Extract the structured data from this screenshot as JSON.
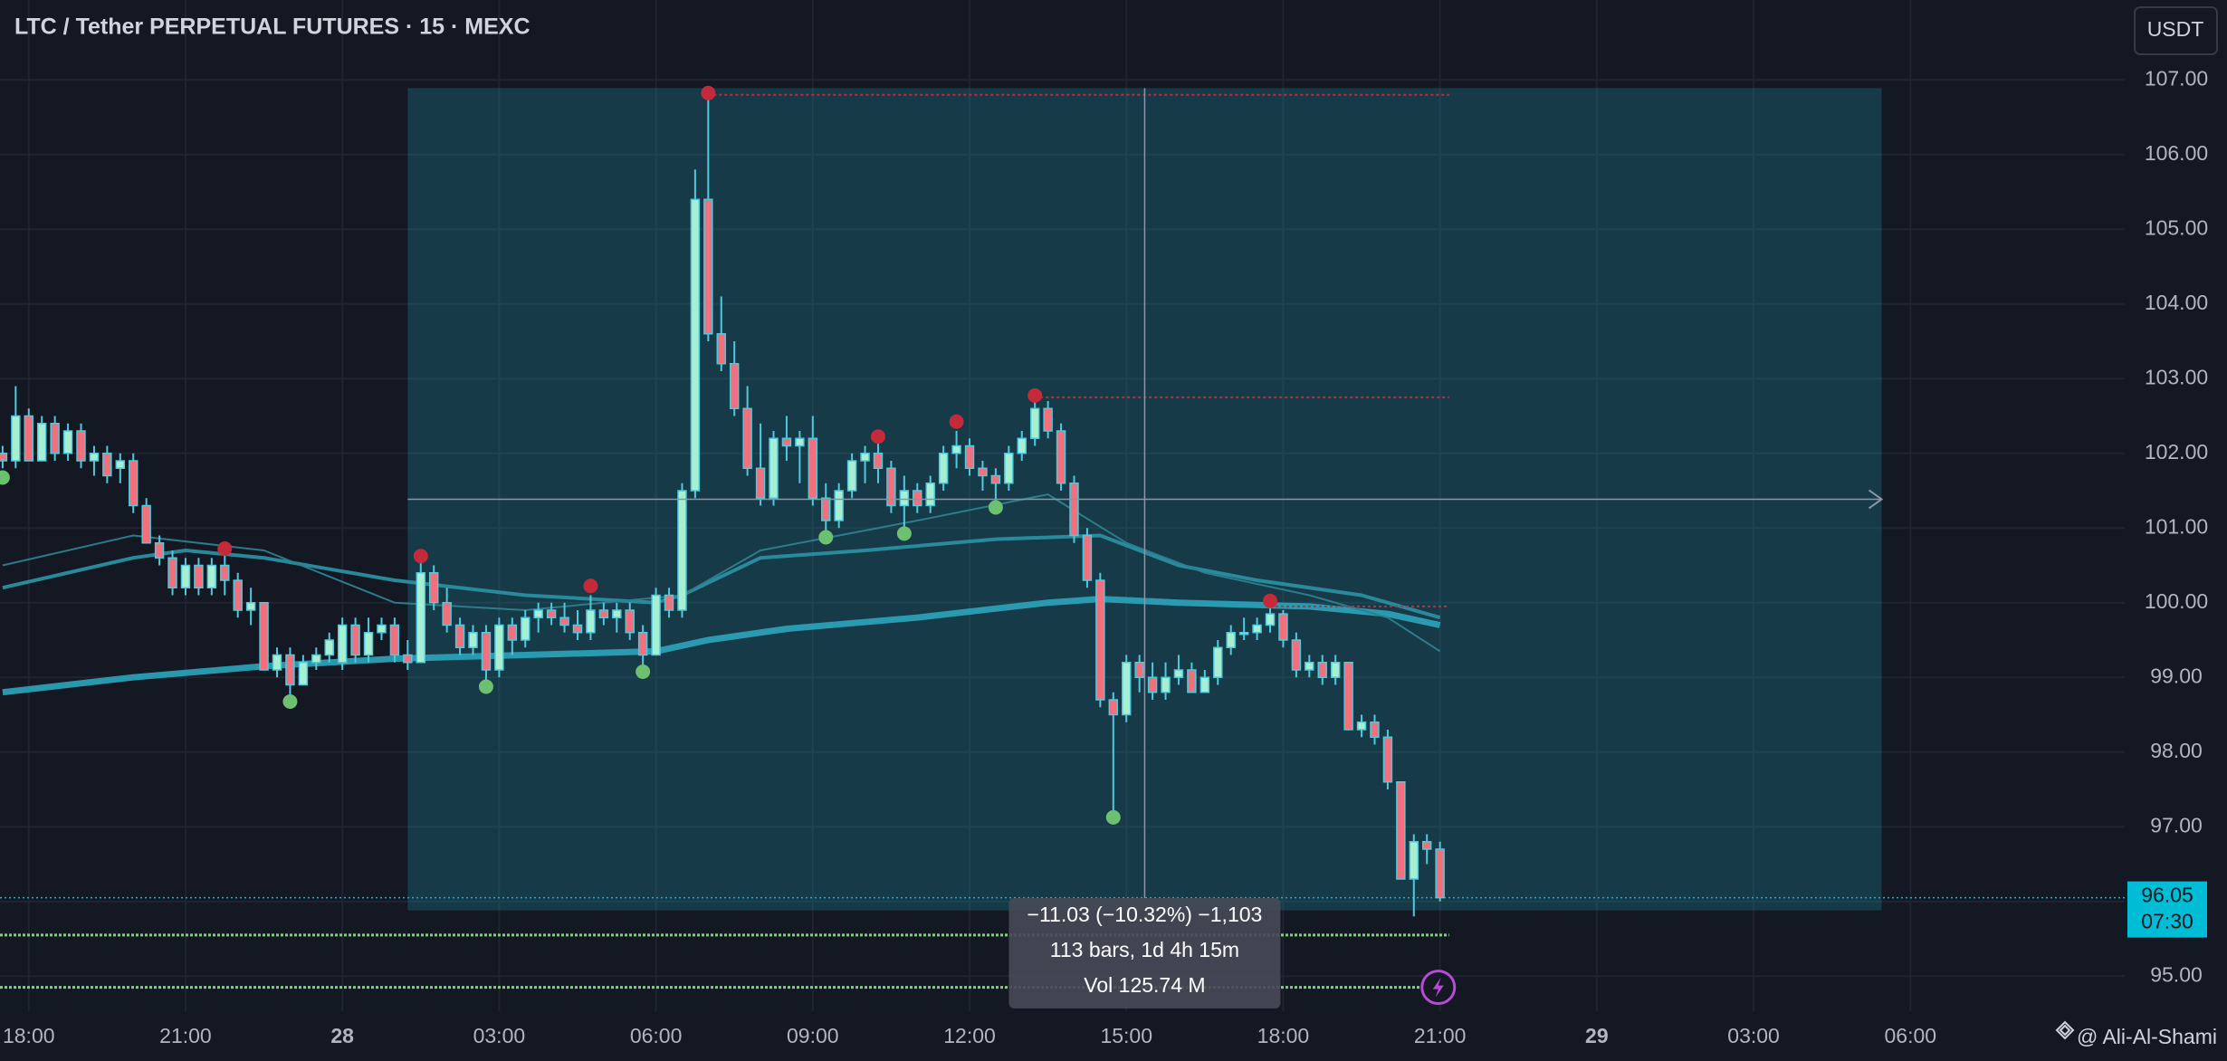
{
  "chart_data": {
    "type": "candlestick",
    "title": "LTC / Tether PERPETUAL FUTURES · 15 · MEXC",
    "currency_button": "USDT",
    "xlim": [
      -0.2,
      162.4
    ],
    "ylim": [
      94.53,
      108.07
    ],
    "xticks": [
      {
        "value": 2,
        "label": "18:00"
      },
      {
        "value": 14,
        "label": "21:00"
      },
      {
        "value": 26,
        "label": "28"
      },
      {
        "value": 38,
        "label": "03:00"
      },
      {
        "value": 50,
        "label": "06:00"
      },
      {
        "value": 62,
        "label": "09:00"
      },
      {
        "value": 74,
        "label": "12:00"
      },
      {
        "value": 86,
        "label": "15:00"
      },
      {
        "value": 98,
        "label": "18:00"
      },
      {
        "value": 110,
        "label": "21:00"
      },
      {
        "value": 122,
        "label": "29"
      },
      {
        "value": 134,
        "label": "03:00"
      },
      {
        "value": 146,
        "label": "06:00"
      }
    ],
    "yticks": [
      {
        "value": 95,
        "label": "95.00"
      },
      {
        "value": 96,
        "label": "96.00"
      },
      {
        "value": 97,
        "label": "97.00"
      },
      {
        "value": 98,
        "label": "98.00"
      },
      {
        "value": 99,
        "label": "99.00"
      },
      {
        "value": 100,
        "label": "100.00"
      },
      {
        "value": 101,
        "label": "101.00"
      },
      {
        "value": 102,
        "label": "102.00"
      },
      {
        "value": 103,
        "label": "103.00"
      },
      {
        "value": 104,
        "label": "104.00"
      },
      {
        "value": 105,
        "label": "105.00"
      },
      {
        "value": 106,
        "label": "106.00"
      },
      {
        "value": 107,
        "label": "107.00"
      }
    ],
    "grid": true,
    "up_color": "#a7efd3",
    "down_color": "#f0707e",
    "wick_color": "#4fc9dc",
    "open": [
      102.0,
      101.9,
      102.5,
      101.9,
      102.4,
      102.0,
      102.3,
      101.9,
      102.0,
      101.8,
      101.9,
      101.3,
      100.8,
      100.6,
      100.2,
      100.5,
      100.2,
      100.5,
      100.3,
      99.9,
      100.0,
      99.1,
      99.3,
      98.9,
      99.2,
      99.3,
      99.2,
      99.7,
      99.3,
      99.6,
      99.7,
      99.3,
      99.2,
      100.4,
      100.0,
      99.7,
      99.4,
      99.6,
      99.1,
      99.7,
      99.5,
      99.8,
      99.9,
      99.8,
      99.7,
      99.6,
      99.9,
      99.8,
      99.9,
      99.6,
      99.3,
      100.1,
      99.9,
      101.5,
      105.4,
      103.6,
      103.2,
      102.6,
      101.8,
      101.4,
      102.2,
      102.1,
      102.2,
      101.4,
      101.1,
      101.5,
      101.9,
      102.0,
      101.8,
      101.3,
      101.5,
      101.3,
      101.6,
      102.0,
      102.1,
      101.8,
      101.7,
      101.6,
      102.0,
      102.2,
      102.6,
      102.3,
      101.6,
      100.9,
      100.3,
      98.7,
      98.5,
      99.2,
      99.0,
      98.8,
      99.0,
      99.1,
      98.8,
      99.0,
      99.4,
      99.6,
      99.6,
      99.7,
      99.85,
      99.5,
      99.1,
      99.2,
      99.0,
      99.2,
      98.3,
      98.4,
      98.2,
      97.6,
      96.3,
      96.8,
      96.7
    ],
    "high": [
      102.1,
      102.9,
      102.6,
      102.5,
      102.5,
      102.4,
      102.4,
      102.1,
      102.1,
      102.0,
      102.0,
      101.4,
      100.9,
      100.7,
      100.6,
      100.6,
      100.6,
      100.7,
      100.4,
      100.2,
      100.0,
      99.4,
      99.4,
      99.3,
      99.4,
      99.6,
      99.8,
      99.8,
      99.8,
      99.8,
      99.8,
      99.5,
      100.6,
      100.5,
      100.2,
      99.8,
      99.7,
      99.7,
      99.8,
      99.8,
      99.9,
      100.0,
      100.0,
      100.0,
      99.9,
      100.1,
      100.0,
      100.0,
      100.0,
      99.7,
      100.2,
      100.2,
      101.6,
      105.8,
      106.8,
      104.1,
      103.5,
      102.9,
      102.4,
      102.3,
      102.5,
      102.3,
      102.5,
      101.6,
      101.6,
      102.0,
      102.1,
      102.2,
      101.9,
      101.7,
      101.6,
      101.7,
      102.1,
      102.3,
      102.2,
      101.9,
      101.8,
      102.1,
      102.3,
      102.7,
      102.7,
      102.4,
      101.7,
      101.0,
      100.4,
      98.8,
      99.3,
      99.3,
      99.2,
      99.2,
      99.3,
      99.2,
      99.1,
      99.5,
      99.7,
      99.8,
      99.8,
      100.0,
      99.9,
      99.6,
      99.3,
      99.3,
      99.3,
      99.2,
      98.5,
      98.5,
      98.3,
      97.6,
      96.9,
      96.9,
      96.8
    ],
    "low": [
      101.8,
      101.8,
      101.9,
      101.9,
      101.9,
      101.9,
      101.8,
      101.7,
      101.6,
      101.6,
      101.2,
      100.8,
      100.5,
      100.1,
      100.1,
      100.1,
      100.1,
      100.1,
      99.8,
      99.7,
      99.1,
      99.0,
      98.7,
      98.9,
      99.1,
      99.2,
      99.1,
      99.2,
      99.2,
      99.5,
      99.2,
      99.1,
      99.2,
      99.9,
      99.6,
      99.3,
      99.3,
      98.9,
      99.0,
      99.3,
      99.4,
      99.6,
      99.7,
      99.6,
      99.5,
      99.5,
      99.7,
      99.6,
      99.5,
      99.1,
      99.3,
      99.8,
      99.8,
      101.4,
      103.5,
      103.1,
      102.5,
      101.7,
      101.3,
      101.3,
      101.9,
      101.6,
      101.3,
      100.9,
      101.0,
      101.4,
      101.6,
      101.6,
      101.2,
      101.0,
      101.2,
      101.2,
      101.5,
      101.8,
      101.7,
      101.5,
      101.3,
      101.5,
      101.9,
      102.1,
      102.2,
      101.5,
      100.8,
      100.2,
      98.6,
      97.2,
      98.4,
      98.8,
      98.7,
      98.7,
      98.9,
      98.8,
      98.8,
      98.9,
      99.3,
      99.5,
      99.5,
      99.6,
      99.4,
      99.0,
      99.0,
      98.9,
      98.9,
      98.3,
      98.2,
      98.1,
      97.5,
      96.3,
      95.8,
      96.5,
      96.0
    ],
    "close": [
      101.9,
      102.5,
      101.9,
      102.4,
      102.0,
      102.3,
      101.9,
      102.0,
      101.7,
      101.9,
      101.3,
      100.8,
      100.6,
      100.2,
      100.5,
      100.2,
      100.5,
      100.3,
      99.9,
      100.0,
      99.1,
      99.3,
      98.9,
      99.2,
      99.3,
      99.5,
      99.7,
      99.3,
      99.6,
      99.7,
      99.3,
      99.2,
      100.4,
      100.0,
      99.7,
      99.4,
      99.6,
      99.1,
      99.7,
      99.5,
      99.8,
      99.9,
      99.8,
      99.7,
      99.6,
      99.9,
      99.8,
      99.9,
      99.6,
      99.3,
      100.1,
      99.9,
      101.5,
      105.4,
      103.6,
      103.2,
      102.6,
      101.8,
      101.4,
      102.2,
      102.1,
      102.2,
      101.4,
      101.1,
      101.5,
      101.9,
      102.0,
      101.8,
      101.3,
      101.5,
      101.3,
      101.6,
      102.0,
      102.1,
      101.8,
      101.7,
      101.6,
      102.0,
      102.2,
      102.6,
      102.3,
      101.6,
      100.9,
      100.3,
      98.7,
      98.5,
      99.2,
      99.0,
      98.8,
      99.0,
      99.1,
      98.8,
      99.0,
      99.4,
      99.6,
      99.6,
      99.7,
      99.85,
      99.5,
      99.1,
      99.2,
      99.0,
      99.2,
      98.3,
      98.4,
      98.2,
      97.6,
      96.3,
      96.8,
      96.7,
      96.05
    ],
    "ma": [
      {
        "color": "#2a9fb5",
        "width": 7,
        "x": [
          0,
          10,
          20,
          30,
          40,
          50,
          54,
          60,
          70,
          80,
          84,
          90,
          100,
          106,
          110
        ],
        "values": [
          98.8,
          99.0,
          99.15,
          99.25,
          99.3,
          99.35,
          99.5,
          99.65,
          99.8,
          100.0,
          100.05,
          100.0,
          99.95,
          99.85,
          99.7
        ]
      },
      {
        "color": "#2a8ea0",
        "width": 4,
        "x": [
          0,
          10,
          14,
          20,
          30,
          40,
          50,
          52,
          58,
          66,
          76,
          84,
          90,
          96,
          104,
          110
        ],
        "values": [
          100.2,
          100.6,
          100.7,
          100.6,
          100.3,
          100.1,
          100.0,
          100.1,
          100.6,
          100.7,
          100.85,
          100.9,
          100.5,
          100.3,
          100.1,
          99.8
        ]
      },
      {
        "color": "#2d7f8e",
        "width": 2,
        "x": [
          0,
          10,
          20,
          30,
          40,
          52,
          58,
          70,
          80,
          86,
          92,
          100,
          106,
          110
        ],
        "values": [
          100.5,
          100.9,
          100.7,
          100.0,
          99.9,
          100.1,
          100.7,
          101.1,
          101.45,
          100.8,
          100.4,
          100.1,
          99.8,
          99.35
        ]
      }
    ],
    "pivot_highs": {
      "color": "#c42a3a",
      "x": [
        17,
        32,
        45,
        54,
        67,
        73,
        79,
        97
      ],
      "values": [
        100.7,
        100.6,
        100.2,
        106.8,
        102.2,
        102.4,
        102.75,
        100.0
      ]
    },
    "pivot_lows": {
      "color": "#6cc070",
      "x": [
        0,
        22,
        37,
        49,
        63,
        69,
        76,
        85
      ],
      "values": [
        101.7,
        98.7,
        98.9,
        99.1,
        100.9,
        100.95,
        101.3,
        97.15
      ]
    },
    "levels": {
      "color": "#c42a3a",
      "x_start": [
        54,
        79,
        97
      ],
      "values": [
        106.8,
        102.75,
        99.95
      ],
      "x_end": 110.7
    },
    "alert_lines": {
      "color": "#7ed37a",
      "values": [
        95.55,
        94.85
      ],
      "x_end": 110.7
    },
    "range_box": {
      "x": [
        31,
        143.8
      ],
      "y": [
        95.88,
        106.89
      ]
    },
    "crosshair_x": 87.4,
    "measure": {
      "change": "−11.03 (−10.32%) −1,103",
      "bars": "113 bars, 1d 4h 15m",
      "volume": "Vol 125.74 M"
    },
    "last_price": {
      "value": 96.05,
      "countdown": "07:30",
      "color": "#00bcd4"
    },
    "watermark": "@ Ali-Al-Shami"
  }
}
